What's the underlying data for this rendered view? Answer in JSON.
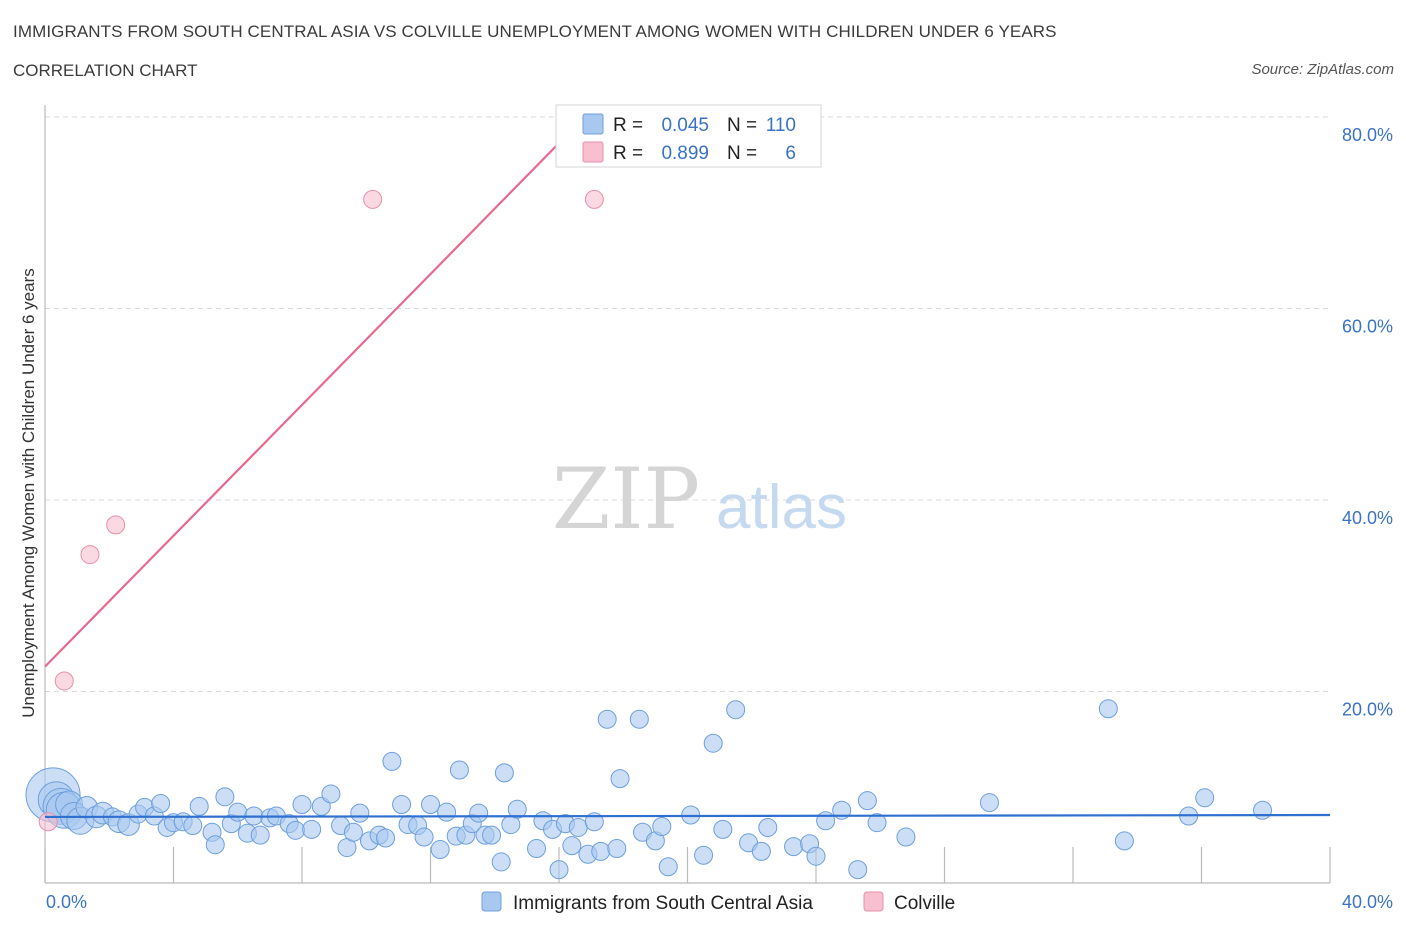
{
  "title": "IMMIGRANTS FROM SOUTH CENTRAL ASIA VS COLVILLE UNEMPLOYMENT AMONG WOMEN WITH CHILDREN UNDER 6 YEARS",
  "subtitle": "CORRELATION CHART",
  "source": "Source: ZipAtlas.com",
  "watermark": {
    "zip": "ZIP",
    "atlas": "atlas"
  },
  "colors": {
    "blue_fill": "#a9c8f0",
    "blue_stroke": "#6e9fdc",
    "blue_line": "#2e6fd0",
    "pink_fill": "#f7bfd0",
    "pink_stroke": "#e88fac",
    "pink_line": "#e8698f",
    "tick_text": "#3b73c4",
    "grid": "#d9d9d9"
  },
  "legend": {
    "rows": [
      {
        "r_label": "R =",
        "r_value": "0.045",
        "n_label": "N =",
        "n_value": "110",
        "series": "blue"
      },
      {
        "r_label": "R =",
        "r_value": "0.899",
        "n_label": "N =",
        "n_value": "6",
        "series": "pink"
      }
    ]
  },
  "chart_data": {
    "type": "scatter",
    "title": "IMMIGRANTS FROM SOUTH CENTRAL ASIA VS COLVILLE UNEMPLOYMENT AMONG WOMEN WITH CHILDREN UNDER 6 YEARS",
    "xlabel": "",
    "ylabel": "Unemployment Among Women with Children Under 6 years",
    "xlim": [
      0,
      40
    ],
    "ylim": [
      0,
      80
    ],
    "x_tick_labels": [
      "0.0%",
      "40.0%"
    ],
    "y_ticks": [
      20,
      40,
      60,
      80
    ],
    "y_tick_labels": [
      "20.0%",
      "40.0%",
      "60.0%",
      "80.0%"
    ],
    "grid": true,
    "series": [
      {
        "name": "Immigrants from South Central Asia",
        "color": "blue",
        "trend": {
          "x0": 0,
          "y0": 6.9,
          "x1": 40,
          "y1": 7.1
        },
        "points": [
          {
            "x": 0.25,
            "y": 9.2,
            "s": 3
          },
          {
            "x": 0.35,
            "y": 8.7,
            "s": 2
          },
          {
            "x": 0.5,
            "y": 8.0,
            "s": 2
          },
          {
            "x": 0.6,
            "y": 7.6,
            "s": 2
          },
          {
            "x": 0.75,
            "y": 8.2,
            "s": 1.5
          },
          {
            "x": 0.9,
            "y": 7.0,
            "s": 1.5
          },
          {
            "x": 1.1,
            "y": 6.5,
            "s": 1.5
          },
          {
            "x": 1.3,
            "y": 7.9,
            "s": 1.2
          },
          {
            "x": 1.6,
            "y": 6.9,
            "s": 1.2
          },
          {
            "x": 1.8,
            "y": 7.3,
            "s": 1.2
          },
          {
            "x": 2.1,
            "y": 6.9,
            "s": 1
          },
          {
            "x": 2.3,
            "y": 6.4,
            "s": 1.2
          },
          {
            "x": 2.6,
            "y": 6.1,
            "s": 1.2
          },
          {
            "x": 2.9,
            "y": 7.2,
            "s": 1
          },
          {
            "x": 3.1,
            "y": 7.9,
            "s": 1
          },
          {
            "x": 3.4,
            "y": 7.0,
            "s": 1
          },
          {
            "x": 3.6,
            "y": 8.3,
            "s": 1
          },
          {
            "x": 3.8,
            "y": 5.8,
            "s": 1
          },
          {
            "x": 4.0,
            "y": 6.3,
            "s": 1
          },
          {
            "x": 4.3,
            "y": 6.4,
            "s": 1
          },
          {
            "x": 4.6,
            "y": 6.0,
            "s": 1
          },
          {
            "x": 4.8,
            "y": 8.0,
            "s": 1
          },
          {
            "x": 5.2,
            "y": 5.3,
            "s": 1
          },
          {
            "x": 5.3,
            "y": 4.0,
            "s": 1
          },
          {
            "x": 5.6,
            "y": 9.0,
            "s": 1
          },
          {
            "x": 5.8,
            "y": 6.2,
            "s": 1
          },
          {
            "x": 6.0,
            "y": 7.4,
            "s": 1
          },
          {
            "x": 6.3,
            "y": 5.2,
            "s": 1
          },
          {
            "x": 6.5,
            "y": 7.0,
            "s": 1
          },
          {
            "x": 6.7,
            "y": 5.0,
            "s": 1
          },
          {
            "x": 7.0,
            "y": 6.8,
            "s": 1
          },
          {
            "x": 7.2,
            "y": 7.0,
            "s": 1
          },
          {
            "x": 7.6,
            "y": 6.2,
            "s": 1
          },
          {
            "x": 7.8,
            "y": 5.5,
            "s": 1
          },
          {
            "x": 8.0,
            "y": 8.2,
            "s": 1
          },
          {
            "x": 8.3,
            "y": 5.6,
            "s": 1
          },
          {
            "x": 8.6,
            "y": 8.0,
            "s": 1
          },
          {
            "x": 8.9,
            "y": 9.3,
            "s": 1
          },
          {
            "x": 9.2,
            "y": 6.0,
            "s": 1
          },
          {
            "x": 9.4,
            "y": 3.7,
            "s": 1
          },
          {
            "x": 9.6,
            "y": 5.3,
            "s": 1
          },
          {
            "x": 9.8,
            "y": 7.3,
            "s": 1
          },
          {
            "x": 10.1,
            "y": 4.4,
            "s": 1
          },
          {
            "x": 10.4,
            "y": 5.0,
            "s": 1
          },
          {
            "x": 10.6,
            "y": 4.7,
            "s": 1
          },
          {
            "x": 10.8,
            "y": 12.7,
            "s": 1
          },
          {
            "x": 11.1,
            "y": 8.2,
            "s": 1
          },
          {
            "x": 11.3,
            "y": 6.1,
            "s": 1
          },
          {
            "x": 11.6,
            "y": 6.0,
            "s": 1
          },
          {
            "x": 11.8,
            "y": 4.8,
            "s": 1
          },
          {
            "x": 12.0,
            "y": 8.2,
            "s": 1
          },
          {
            "x": 12.3,
            "y": 3.5,
            "s": 1
          },
          {
            "x": 12.5,
            "y": 7.4,
            "s": 1
          },
          {
            "x": 12.8,
            "y": 4.9,
            "s": 1
          },
          {
            "x": 12.9,
            "y": 11.8,
            "s": 1
          },
          {
            "x": 13.1,
            "y": 5.0,
            "s": 1
          },
          {
            "x": 13.3,
            "y": 6.2,
            "s": 1
          },
          {
            "x": 13.5,
            "y": 7.3,
            "s": 1
          },
          {
            "x": 13.7,
            "y": 5.0,
            "s": 1
          },
          {
            "x": 13.9,
            "y": 5.0,
            "s": 1
          },
          {
            "x": 14.2,
            "y": 2.2,
            "s": 1
          },
          {
            "x": 14.3,
            "y": 11.5,
            "s": 1
          },
          {
            "x": 14.5,
            "y": 6.1,
            "s": 1
          },
          {
            "x": 14.7,
            "y": 7.7,
            "s": 1
          },
          {
            "x": 15.3,
            "y": 3.6,
            "s": 1
          },
          {
            "x": 15.5,
            "y": 6.5,
            "s": 1
          },
          {
            "x": 15.8,
            "y": 5.6,
            "s": 1
          },
          {
            "x": 16.0,
            "y": 1.4,
            "s": 1
          },
          {
            "x": 16.2,
            "y": 6.2,
            "s": 1
          },
          {
            "x": 16.4,
            "y": 3.9,
            "s": 1
          },
          {
            "x": 16.6,
            "y": 5.8,
            "s": 1
          },
          {
            "x": 16.9,
            "y": 3.0,
            "s": 1
          },
          {
            "x": 17.1,
            "y": 6.4,
            "s": 1
          },
          {
            "x": 17.3,
            "y": 3.3,
            "s": 1
          },
          {
            "x": 17.5,
            "y": 17.1,
            "s": 1
          },
          {
            "x": 17.8,
            "y": 3.6,
            "s": 1
          },
          {
            "x": 17.9,
            "y": 10.9,
            "s": 1
          },
          {
            "x": 18.5,
            "y": 17.1,
            "s": 1
          },
          {
            "x": 18.6,
            "y": 5.3,
            "s": 1
          },
          {
            "x": 19.0,
            "y": 4.4,
            "s": 1
          },
          {
            "x": 19.2,
            "y": 5.9,
            "s": 1
          },
          {
            "x": 19.4,
            "y": 1.7,
            "s": 1
          },
          {
            "x": 20.1,
            "y": 7.1,
            "s": 1
          },
          {
            "x": 20.5,
            "y": 2.9,
            "s": 1
          },
          {
            "x": 20.8,
            "y": 14.6,
            "s": 1
          },
          {
            "x": 21.1,
            "y": 5.6,
            "s": 1
          },
          {
            "x": 21.5,
            "y": 18.1,
            "s": 1
          },
          {
            "x": 21.9,
            "y": 4.2,
            "s": 1
          },
          {
            "x": 22.3,
            "y": 3.3,
            "s": 1
          },
          {
            "x": 22.5,
            "y": 5.8,
            "s": 1
          },
          {
            "x": 23.3,
            "y": 3.8,
            "s": 1
          },
          {
            "x": 23.8,
            "y": 4.1,
            "s": 1
          },
          {
            "x": 24.0,
            "y": 2.8,
            "s": 1
          },
          {
            "x": 24.3,
            "y": 6.5,
            "s": 1
          },
          {
            "x": 24.8,
            "y": 7.6,
            "s": 1
          },
          {
            "x": 25.3,
            "y": 1.4,
            "s": 1
          },
          {
            "x": 25.6,
            "y": 8.6,
            "s": 1
          },
          {
            "x": 25.9,
            "y": 6.3,
            "s": 1
          },
          {
            "x": 26.8,
            "y": 4.8,
            "s": 1
          },
          {
            "x": 29.4,
            "y": 8.4,
            "s": 1
          },
          {
            "x": 33.1,
            "y": 18.2,
            "s": 1
          },
          {
            "x": 33.6,
            "y": 4.4,
            "s": 1
          },
          {
            "x": 35.6,
            "y": 7.0,
            "s": 1
          },
          {
            "x": 36.1,
            "y": 8.9,
            "s": 1
          },
          {
            "x": 37.9,
            "y": 7.6,
            "s": 1
          }
        ]
      },
      {
        "name": "Colville",
        "color": "pink",
        "trend": {
          "x0": 0,
          "y0": 22.6,
          "x1": 16.8,
          "y1": 80
        },
        "points": [
          {
            "x": 0.1,
            "y": 6.4,
            "s": 1
          },
          {
            "x": 0.6,
            "y": 21.1,
            "s": 1
          },
          {
            "x": 1.4,
            "y": 34.3,
            "s": 1
          },
          {
            "x": 2.2,
            "y": 37.4,
            "s": 1
          },
          {
            "x": 10.2,
            "y": 71.4,
            "s": 1
          },
          {
            "x": 17.1,
            "y": 71.4,
            "s": 1
          }
        ]
      }
    ]
  }
}
